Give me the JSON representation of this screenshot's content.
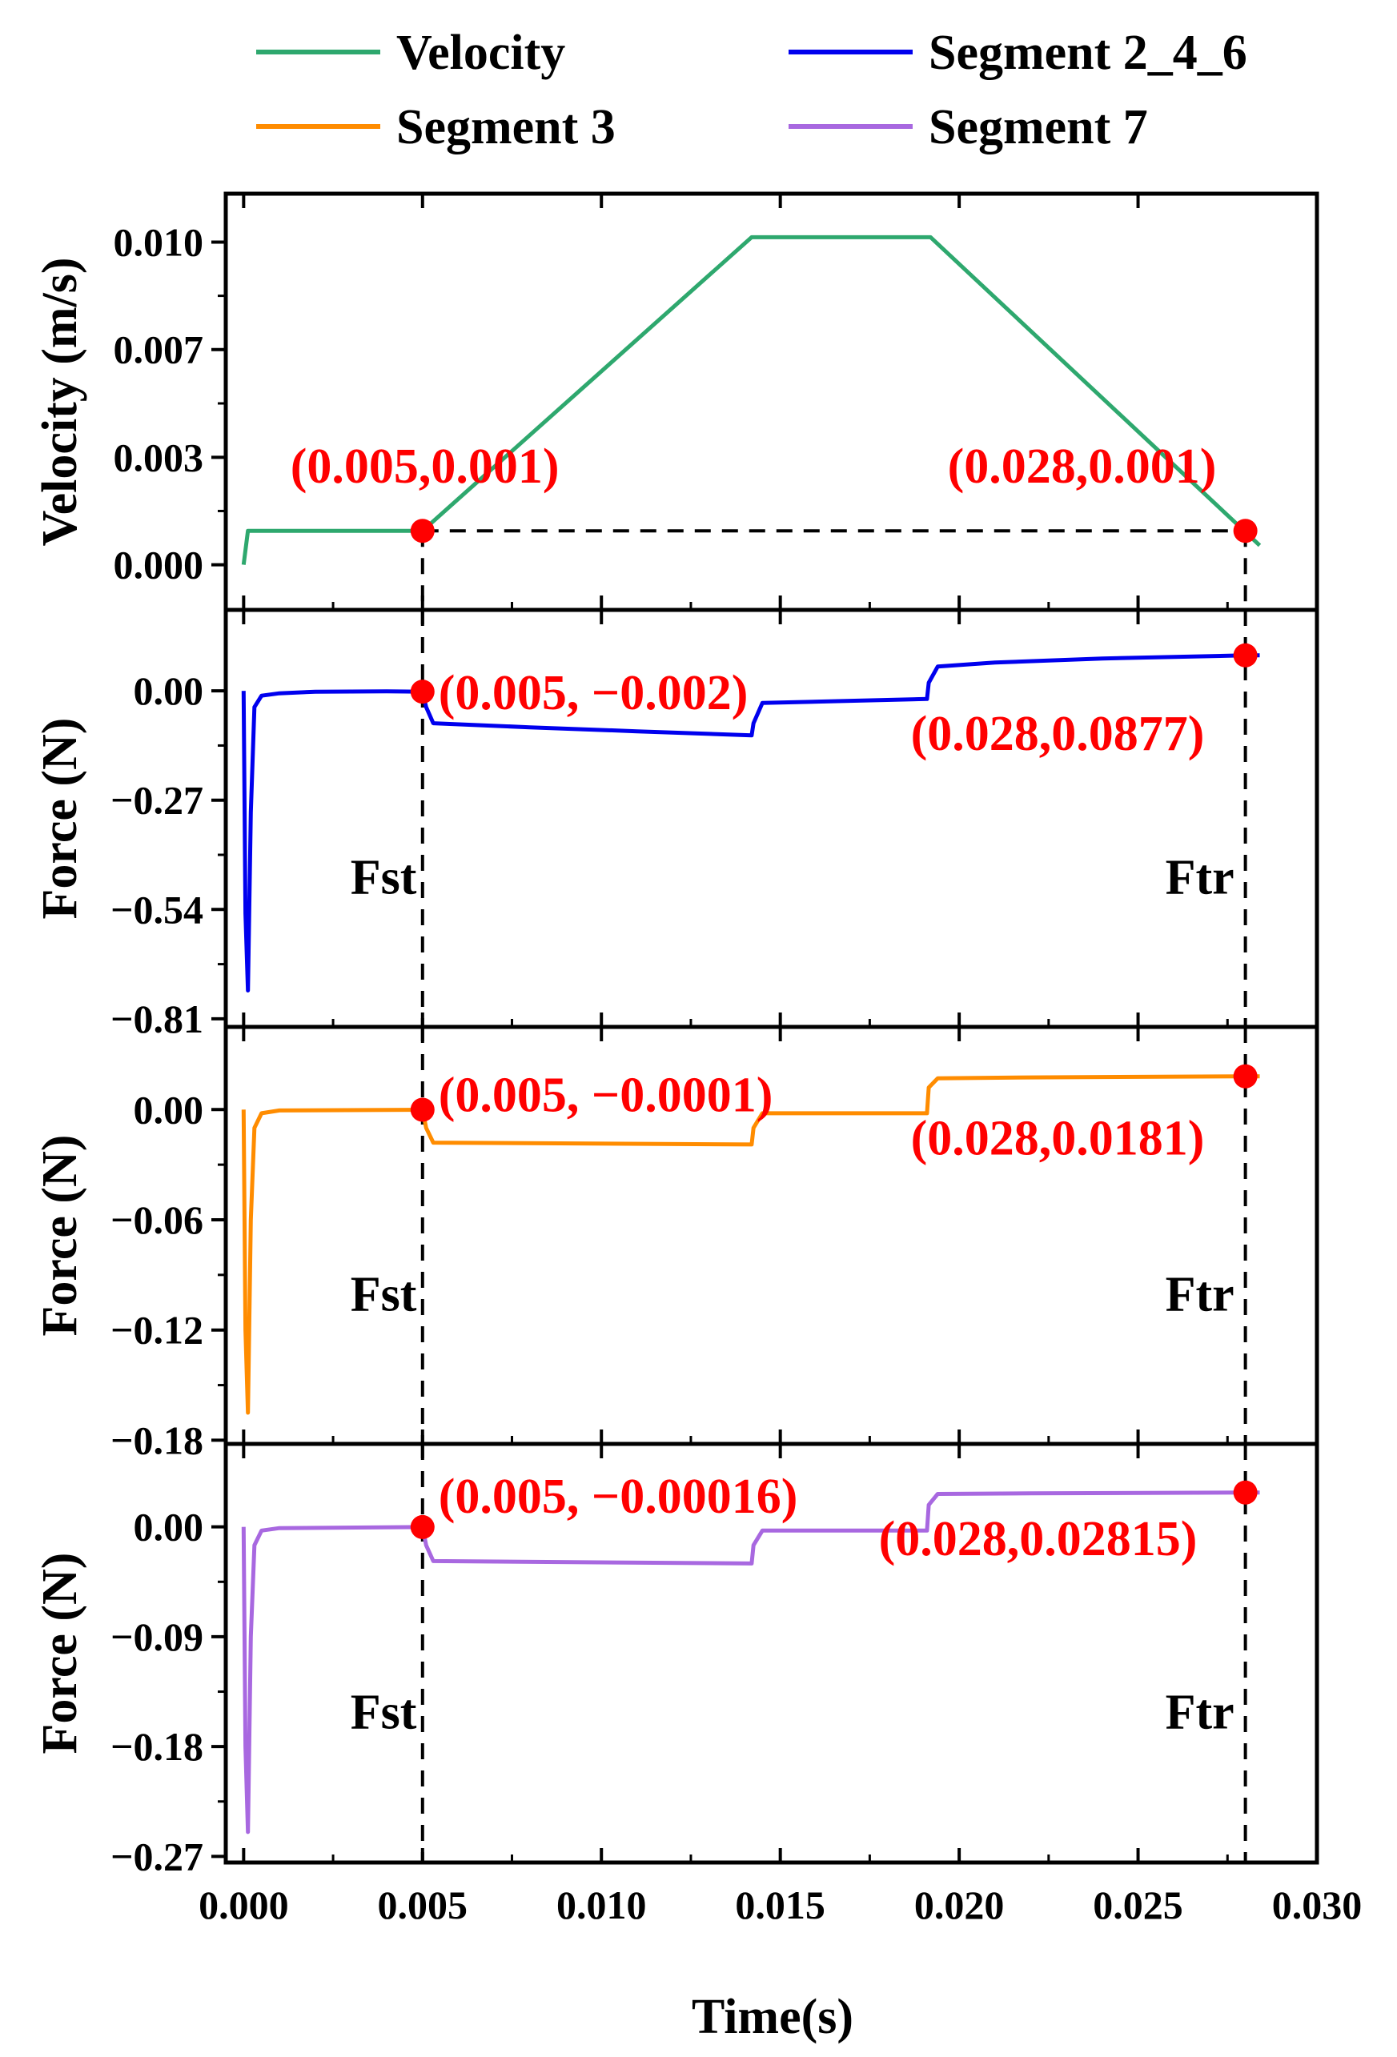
{
  "chart_data": {
    "type": "line",
    "legend": [
      {
        "name": "Velocity",
        "color": "#2ea86e"
      },
      {
        "name": "Segment 2_4_6",
        "color": "#0000ee"
      },
      {
        "name": "Segment 3",
        "color": "#ff8c00"
      },
      {
        "name": "Segment 7",
        "color": "#a868e0"
      }
    ],
    "xlabel": "Time(s)",
    "xlim": [
      -0.0005,
      0.03
    ],
    "xticks": [
      0,
      0.005,
      0.01,
      0.015,
      0.02,
      0.025,
      0.03
    ],
    "xtick_labels": [
      "0.000",
      "0.005",
      "0.010",
      "0.015",
      "0.020",
      "0.025",
      "0.030"
    ],
    "ref_lines": [
      {
        "x": 0.005,
        "label": "Fst"
      },
      {
        "x": 0.028,
        "label": "Ftr"
      }
    ],
    "panels": [
      {
        "id": "velocity",
        "ylabel": "Velocity (m/s)",
        "ylim": [
          -0.0014,
          0.0115
        ],
        "yticks": [
          0,
          0.00333,
          0.00667,
          0.01
        ],
        "ytick_labels": [
          "0.000",
          "0.003",
          "0.007",
          "0.010"
        ],
        "series": {
          "name": "Velocity",
          "color": "#2ea86e",
          "x": [
            0,
            0.00012,
            0.005,
            0.0142,
            0.0192,
            0.0284
          ],
          "y": [
            0,
            0.00105,
            0.00105,
            0.01015,
            0.01015,
            0.0006
          ]
        },
        "horizontal_ref": {
          "y": 0.00105,
          "x_from": 0.005,
          "x_to": 0.028
        },
        "points": [
          {
            "x": 0.005,
            "y": 0.00105,
            "label": "(0.005,0.001)"
          },
          {
            "x": 0.028,
            "y": 0.00105,
            "label": "(0.028,0.001)"
          }
        ]
      },
      {
        "id": "segment-2-4-6",
        "ylabel": "Force (N)",
        "ylim": [
          -0.83,
          0.2
        ],
        "yticks": [
          0,
          -0.27,
          -0.54,
          -0.81
        ],
        "ytick_labels": [
          "0.00",
          "−0.27",
          "−0.54",
          "−0.81"
        ],
        "series": {
          "name": "Segment 2_4_6",
          "color": "#0000ee",
          "x": [
            0,
            5e-05,
            0.00012,
            0.0002,
            0.0003,
            0.0005,
            0.001,
            0.002,
            0.004,
            0.005,
            0.0051,
            0.0053,
            0.008,
            0.011,
            0.0142,
            0.01425,
            0.0145,
            0.0191,
            0.01915,
            0.0194,
            0.021,
            0.024,
            0.028,
            0.0284
          ],
          "y": [
            0,
            -0.55,
            -0.74,
            -0.3,
            -0.04,
            -0.012,
            -0.006,
            -0.002,
            -0.001,
            -0.002,
            -0.04,
            -0.08,
            -0.09,
            -0.1,
            -0.11,
            -0.08,
            -0.03,
            -0.02,
            0.02,
            0.06,
            0.07,
            0.08,
            0.0877,
            0.088
          ]
        },
        "points": [
          {
            "x": 0.005,
            "y": -0.002,
            "label": "(0.005, −0.002)"
          },
          {
            "x": 0.028,
            "y": 0.0877,
            "label": "(0.028,0.0877)"
          }
        ]
      },
      {
        "id": "segment-3",
        "ylabel": "Force (N)",
        "ylim": [
          -0.182,
          0.045
        ],
        "yticks": [
          0,
          -0.06,
          -0.12,
          -0.18
        ],
        "ytick_labels": [
          "0.00",
          "−0.06",
          "−0.12",
          "−0.18"
        ],
        "series": {
          "name": "Segment 3",
          "color": "#ff8c00",
          "x": [
            0,
            5e-05,
            0.00012,
            0.0002,
            0.0003,
            0.0005,
            0.001,
            0.005,
            0.0051,
            0.0053,
            0.0142,
            0.01425,
            0.0145,
            0.0191,
            0.01915,
            0.0194,
            0.022,
            0.028,
            0.0284
          ],
          "y": [
            0,
            -0.12,
            -0.165,
            -0.06,
            -0.01,
            -0.002,
            -0.0005,
            -0.0001,
            -0.01,
            -0.018,
            -0.019,
            -0.01,
            -0.002,
            -0.002,
            0.012,
            0.017,
            0.0175,
            0.0181,
            0.0181
          ]
        },
        "points": [
          {
            "x": 0.005,
            "y": -0.0001,
            "label": "(0.005, −0.0001)"
          },
          {
            "x": 0.028,
            "y": 0.0181,
            "label": "(0.028,0.0181)"
          }
        ]
      },
      {
        "id": "segment-7",
        "ylabel": "Force (N)",
        "ylim": [
          -0.275,
          0.068
        ],
        "yticks": [
          0,
          -0.09,
          -0.18,
          -0.27
        ],
        "ytick_labels": [
          "0.00",
          "−0.09",
          "−0.18",
          "−0.27"
        ],
        "series": {
          "name": "Segment 7",
          "color": "#a868e0",
          "x": [
            0,
            5e-05,
            0.00012,
            0.0002,
            0.0003,
            0.0005,
            0.001,
            0.005,
            0.0051,
            0.0053,
            0.0142,
            0.01425,
            0.0145,
            0.0191,
            0.01915,
            0.0194,
            0.022,
            0.028,
            0.0284
          ],
          "y": [
            0,
            -0.18,
            -0.25,
            -0.09,
            -0.015,
            -0.003,
            -0.001,
            -0.00016,
            -0.015,
            -0.028,
            -0.03,
            -0.015,
            -0.003,
            -0.003,
            0.018,
            0.027,
            0.0275,
            0.02815,
            0.0282
          ]
        },
        "points": [
          {
            "x": 0.005,
            "y": -0.00016,
            "label": "(0.005, −0.00016)"
          },
          {
            "x": 0.028,
            "y": 0.02815,
            "label": "(0.028,0.02815)"
          }
        ]
      }
    ]
  }
}
